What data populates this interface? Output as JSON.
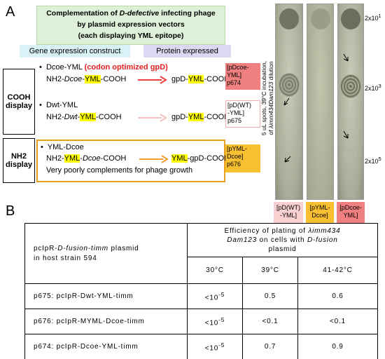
{
  "panel_a": {
    "label": "A",
    "header": {
      "line1": [
        "Complementation of ",
        "D-defective",
        " infecting phage"
      ],
      "line2": "by plasmid expression vectors",
      "line3": "(each displaying YML epitope)"
    },
    "col_construct": "Gene expression construct",
    "col_protein": "Protein expressed",
    "side_cooh": [
      "COOH",
      "display"
    ],
    "side_nh2": [
      "NH2",
      "display"
    ],
    "rows": [
      {
        "name": "Dcoe-YML",
        "note": "(codon optimized gpD)",
        "construct": [
          "NH2-",
          "Dcoe",
          "-",
          "YML",
          "-COOH"
        ],
        "protein": [
          "gpD-",
          "YML",
          "-COOH"
        ],
        "tag": [
          "[pDcoe-",
          "YML]",
          "p674"
        ]
      },
      {
        "name": "Dwt-YML",
        "construct": [
          "NH2-",
          "Dwt",
          "-",
          "YML",
          "-COOH"
        ],
        "protein": [
          "gpD-",
          "YML",
          "-COOH"
        ],
        "tag": [
          "[pD(WT)",
          "-YML]",
          "p675"
        ]
      },
      {
        "name": "YML-Dcoe",
        "construct": [
          "NH2-",
          "YML",
          "-",
          "Dcoe",
          "-COOH"
        ],
        "protein": [
          "YML",
          "-gpD-COOH"
        ],
        "tag": [
          "[pYML-",
          "Dcoe]",
          "p676"
        ],
        "comment": "Very poorly complements for phage growth"
      }
    ],
    "plate_caption": {
      "line1": "5 uL spots, 39°C incubation,",
      "line2": [
        "of ",
        "λimm434Dam123",
        " dilution"
      ]
    },
    "dilutions": [
      {
        "base": "2x10",
        "exp": "1"
      },
      {
        "base": "2x10",
        "exp": "3"
      },
      {
        "base": "2x10",
        "exp": "5"
      }
    ],
    "lanes": [
      [
        "[pD(WT)",
        "-YML]"
      ],
      [
        "[pYML-",
        "Dcoe]"
      ],
      [
        "[pDcoe-",
        "YML]"
      ]
    ]
  },
  "panel_b": {
    "label": "B",
    "table": {
      "header_left": [
        "pcIpR-",
        "D-fusion-timm",
        " plasmid",
        "in host strain 594"
      ],
      "header_right": [
        "Efficiency of plating of ",
        "λimm434",
        "Dam123",
        " on cells with ",
        "D-fusion",
        "plasmid"
      ],
      "temps": [
        "30°C",
        "39°C",
        "41-42°C"
      ],
      "rows": [
        {
          "plasmid": "p675: pcIpR-Dwt-YML-timm",
          "low": {
            "base": "<10",
            "exp": "-5"
          },
          "t39": 0.5,
          "t42": 0.6
        },
        {
          "plasmid": "p676: pcIpR-MYML-Dcoe-timm",
          "low": {
            "base": "<10",
            "exp": "-5"
          },
          "t39": "<0.1",
          "t42": "<0.1"
        },
        {
          "plasmid": "p674: pcIpR-Dcoe-YML-timm",
          "low": {
            "base": "<10",
            "exp": "-5"
          },
          "t39": 0.7,
          "t42": 0.9
        }
      ]
    }
  }
}
